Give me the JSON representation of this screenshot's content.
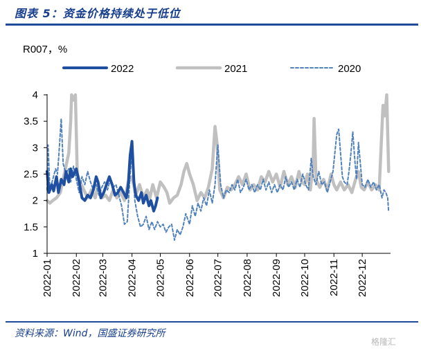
{
  "header": {
    "title": "图表 5：资金价格持续处于低位"
  },
  "footer": {
    "source": "资料来源：Wind，国盛证券研究所",
    "watermark": "格隆汇"
  },
  "chart_data": {
    "type": "line",
    "unit_label": "R007，%",
    "ylim": [
      1,
      4
    ],
    "yticks": [
      1,
      1.5,
      2,
      2.5,
      3,
      3.5,
      4
    ],
    "xlim": [
      "2022-01-01",
      "2022-12-31"
    ],
    "xticks": [
      "2022-01",
      "2022-02",
      "2022-03",
      "2022-04",
      "2022-05",
      "2022-06",
      "2022-07",
      "2022-08",
      "2022-09",
      "2022-10",
      "2022-11",
      "2022-12"
    ],
    "grid": false,
    "legend_position": "top",
    "series": [
      {
        "name": "2022",
        "color": "#1f4fa0",
        "style": "solid-thick",
        "points": [
          [
            "2022-01-01",
            2.55
          ],
          [
            "2022-01-03",
            2.15
          ],
          [
            "2022-01-06",
            2.3
          ],
          [
            "2022-01-08",
            2.18
          ],
          [
            "2022-01-11",
            2.45
          ],
          [
            "2022-01-13",
            2.15
          ],
          [
            "2022-01-16",
            2.4
          ],
          [
            "2022-01-19",
            2.3
          ],
          [
            "2022-01-21",
            2.55
          ],
          [
            "2022-01-24",
            2.35
          ],
          [
            "2022-01-26",
            2.6
          ],
          [
            "2022-01-28",
            2.45
          ],
          [
            "2022-02-01",
            2.6
          ],
          [
            "2022-02-04",
            2.35
          ],
          [
            "2022-02-07",
            2.05
          ],
          [
            "2022-02-10",
            2.0
          ],
          [
            "2022-02-13",
            2.1
          ],
          [
            "2022-02-16",
            2.05
          ],
          [
            "2022-02-19",
            2.2
          ],
          [
            "2022-02-22",
            2.45
          ],
          [
            "2022-02-24",
            2.35
          ],
          [
            "2022-02-27",
            2.05
          ],
          [
            "2022-03-02",
            2.15
          ],
          [
            "2022-03-05",
            2.3
          ],
          [
            "2022-03-08",
            2.45
          ],
          [
            "2022-03-11",
            2.3
          ],
          [
            "2022-03-14",
            2.1
          ],
          [
            "2022-03-17",
            2.15
          ],
          [
            "2022-03-20",
            2.25
          ],
          [
            "2022-03-23",
            2.15
          ],
          [
            "2022-03-26",
            2.05
          ],
          [
            "2022-03-28",
            2.3
          ],
          [
            "2022-03-30",
            2.85
          ],
          [
            "2022-04-01",
            3.12
          ],
          [
            "2022-04-03",
            2.35
          ],
          [
            "2022-04-05",
            2.1
          ],
          [
            "2022-04-08",
            2.0
          ],
          [
            "2022-04-11",
            2.15
          ],
          [
            "2022-04-13",
            1.95
          ],
          [
            "2022-04-16",
            2.1
          ],
          [
            "2022-04-19",
            1.9
          ],
          [
            "2022-04-21",
            2.0
          ],
          [
            "2022-04-24",
            1.8
          ],
          [
            "2022-04-26",
            1.9
          ],
          [
            "2022-04-28",
            2.05
          ]
        ]
      },
      {
        "name": "2021",
        "color": "#c0c0c0",
        "style": "solid-thick",
        "points": [
          [
            "2022-01-01",
            2.0
          ],
          [
            "2022-01-04",
            1.95
          ],
          [
            "2022-01-07",
            2.0
          ],
          [
            "2022-01-11",
            2.05
          ],
          [
            "2022-01-15",
            2.15
          ],
          [
            "2022-01-18",
            2.4
          ],
          [
            "2022-01-21",
            2.65
          ],
          [
            "2022-01-24",
            2.9
          ],
          [
            "2022-01-26",
            3.5
          ],
          [
            "2022-01-27",
            4.0
          ],
          [
            "2022-01-29",
            3.9
          ],
          [
            "2022-01-31",
            4.0
          ],
          [
            "2022-02-02",
            2.5
          ],
          [
            "2022-02-05",
            2.35
          ],
          [
            "2022-02-09",
            2.2
          ],
          [
            "2022-02-13",
            2.05
          ],
          [
            "2022-02-17",
            2.2
          ],
          [
            "2022-02-21",
            2.05
          ],
          [
            "2022-02-24",
            2.3
          ],
          [
            "2022-02-28",
            2.05
          ],
          [
            "2022-03-04",
            2.1
          ],
          [
            "2022-03-08",
            2.0
          ],
          [
            "2022-03-12",
            2.2
          ],
          [
            "2022-03-16",
            2.05
          ],
          [
            "2022-03-20",
            2.15
          ],
          [
            "2022-03-24",
            2.0
          ],
          [
            "2022-03-28",
            2.35
          ],
          [
            "2022-04-01",
            2.45
          ],
          [
            "2022-04-05",
            2.1
          ],
          [
            "2022-04-09",
            2.3
          ],
          [
            "2022-04-13",
            2.05
          ],
          [
            "2022-04-17",
            2.2
          ],
          [
            "2022-04-20",
            2.05
          ],
          [
            "2022-04-23",
            2.3
          ],
          [
            "2022-04-27",
            2.05
          ],
          [
            "2022-05-01",
            2.35
          ],
          [
            "2022-05-05",
            2.25
          ],
          [
            "2022-05-08",
            2.15
          ],
          [
            "2022-05-11",
            1.95
          ],
          [
            "2022-05-15",
            2.05
          ],
          [
            "2022-05-19",
            2.1
          ],
          [
            "2022-05-23",
            2.3
          ],
          [
            "2022-05-26",
            2.55
          ],
          [
            "2022-05-29",
            2.7
          ],
          [
            "2022-06-01",
            2.5
          ],
          [
            "2022-06-05",
            2.3
          ],
          [
            "2022-06-09",
            2.0
          ],
          [
            "2022-06-13",
            2.15
          ],
          [
            "2022-06-17",
            2.05
          ],
          [
            "2022-06-21",
            2.25
          ],
          [
            "2022-06-25",
            2.6
          ],
          [
            "2022-06-28",
            3.4
          ],
          [
            "2022-06-30",
            3.1
          ],
          [
            "2022-07-03",
            2.2
          ],
          [
            "2022-07-07",
            2.05
          ],
          [
            "2022-07-11",
            2.25
          ],
          [
            "2022-07-15",
            2.2
          ],
          [
            "2022-07-19",
            2.3
          ],
          [
            "2022-07-23",
            2.45
          ],
          [
            "2022-07-27",
            2.3
          ],
          [
            "2022-07-31",
            2.5
          ],
          [
            "2022-08-04",
            2.2
          ],
          [
            "2022-08-08",
            2.3
          ],
          [
            "2022-08-12",
            2.2
          ],
          [
            "2022-08-16",
            2.45
          ],
          [
            "2022-08-20",
            2.35
          ],
          [
            "2022-08-24",
            2.55
          ],
          [
            "2022-08-28",
            2.35
          ],
          [
            "2022-09-01",
            2.5
          ],
          [
            "2022-09-05",
            2.25
          ],
          [
            "2022-09-09",
            2.55
          ],
          [
            "2022-09-13",
            2.3
          ],
          [
            "2022-09-17",
            2.45
          ],
          [
            "2022-09-21",
            2.25
          ],
          [
            "2022-09-25",
            2.55
          ],
          [
            "2022-09-28",
            2.35
          ],
          [
            "2022-10-01",
            2.3
          ],
          [
            "2022-10-04",
            2.5
          ],
          [
            "2022-10-07",
            2.2
          ],
          [
            "2022-10-10",
            2.7
          ],
          [
            "2022-10-11",
            3.55
          ],
          [
            "2022-10-13",
            2.4
          ],
          [
            "2022-10-17",
            2.25
          ],
          [
            "2022-10-21",
            2.4
          ],
          [
            "2022-10-25",
            2.2
          ],
          [
            "2022-10-29",
            2.5
          ],
          [
            "2022-11-01",
            2.3
          ],
          [
            "2022-11-04",
            2.2
          ],
          [
            "2022-11-08",
            2.35
          ],
          [
            "2022-11-12",
            2.2
          ],
          [
            "2022-11-16",
            2.3
          ],
          [
            "2022-11-20",
            2.15
          ],
          [
            "2022-11-24",
            2.4
          ],
          [
            "2022-11-27",
            2.55
          ],
          [
            "2022-11-30",
            2.25
          ],
          [
            "2022-12-03",
            2.2
          ],
          [
            "2022-12-07",
            2.35
          ],
          [
            "2022-12-11",
            2.2
          ],
          [
            "2022-12-15",
            2.3
          ],
          [
            "2022-12-19",
            2.2
          ],
          [
            "2022-12-23",
            3.8
          ],
          [
            "2022-12-25",
            3.6
          ],
          [
            "2022-12-27",
            4.0
          ],
          [
            "2022-12-29",
            2.55
          ]
        ]
      },
      {
        "name": "2020",
        "color": "#4f81bd",
        "style": "dashed",
        "points": [
          [
            "2022-01-01",
            2.2
          ],
          [
            "2022-01-02",
            3.05
          ],
          [
            "2022-01-04",
            2.2
          ],
          [
            "2022-01-07",
            2.4
          ],
          [
            "2022-01-10",
            2.6
          ],
          [
            "2022-01-12",
            2.5
          ],
          [
            "2022-01-14",
            3.0
          ],
          [
            "2022-01-16",
            3.55
          ],
          [
            "2022-01-18",
            2.7
          ],
          [
            "2022-01-21",
            2.5
          ],
          [
            "2022-01-24",
            2.6
          ],
          [
            "2022-01-26",
            2.35
          ],
          [
            "2022-01-29",
            2.65
          ],
          [
            "2022-02-01",
            2.4
          ],
          [
            "2022-02-04",
            2.15
          ],
          [
            "2022-02-07",
            2.45
          ],
          [
            "2022-02-10",
            2.3
          ],
          [
            "2022-02-13",
            2.55
          ],
          [
            "2022-02-16",
            2.35
          ],
          [
            "2022-02-19",
            2.2
          ],
          [
            "2022-02-22",
            2.3
          ],
          [
            "2022-02-25",
            2.1
          ],
          [
            "2022-02-28",
            2.25
          ],
          [
            "2022-03-03",
            2.35
          ],
          [
            "2022-03-06",
            2.2
          ],
          [
            "2022-03-09",
            2.4
          ],
          [
            "2022-03-12",
            2.25
          ],
          [
            "2022-03-15",
            2.3
          ],
          [
            "2022-03-18",
            2.1
          ],
          [
            "2022-03-21",
            1.9
          ],
          [
            "2022-03-24",
            1.55
          ],
          [
            "2022-03-27",
            1.6
          ],
          [
            "2022-03-30",
            2.5
          ],
          [
            "2022-04-01",
            2.9
          ],
          [
            "2022-04-04",
            2.0
          ],
          [
            "2022-04-07",
            1.7
          ],
          [
            "2022-04-10",
            1.5
          ],
          [
            "2022-04-13",
            1.55
          ],
          [
            "2022-04-16",
            1.7
          ],
          [
            "2022-04-19",
            1.45
          ],
          [
            "2022-04-22",
            1.6
          ],
          [
            "2022-04-25",
            1.45
          ],
          [
            "2022-04-28",
            1.6
          ],
          [
            "2022-05-01",
            1.5
          ],
          [
            "2022-05-04",
            1.55
          ],
          [
            "2022-05-07",
            1.4
          ],
          [
            "2022-05-10",
            1.5
          ],
          [
            "2022-05-13",
            1.55
          ],
          [
            "2022-05-16",
            1.25
          ],
          [
            "2022-05-19",
            1.45
          ],
          [
            "2022-05-22",
            1.35
          ],
          [
            "2022-05-25",
            1.5
          ],
          [
            "2022-05-28",
            1.75
          ],
          [
            "2022-06-01",
            1.55
          ],
          [
            "2022-06-04",
            1.9
          ],
          [
            "2022-06-07",
            1.7
          ],
          [
            "2022-06-10",
            1.95
          ],
          [
            "2022-06-13",
            1.8
          ],
          [
            "2022-06-16",
            2.05
          ],
          [
            "2022-06-19",
            1.9
          ],
          [
            "2022-06-22",
            2.2
          ],
          [
            "2022-06-25",
            1.95
          ],
          [
            "2022-06-28",
            2.3
          ],
          [
            "2022-07-01",
            3.05
          ],
          [
            "2022-07-04",
            2.3
          ],
          [
            "2022-07-07",
            2.05
          ],
          [
            "2022-07-10",
            2.2
          ],
          [
            "2022-07-13",
            2.15
          ],
          [
            "2022-07-16",
            2.3
          ],
          [
            "2022-07-19",
            2.2
          ],
          [
            "2022-07-22",
            2.4
          ],
          [
            "2022-07-25",
            2.15
          ],
          [
            "2022-07-28",
            2.25
          ],
          [
            "2022-07-31",
            2.4
          ],
          [
            "2022-08-03",
            2.2
          ],
          [
            "2022-08-06",
            2.3
          ],
          [
            "2022-08-09",
            2.15
          ],
          [
            "2022-08-12",
            2.3
          ],
          [
            "2022-08-15",
            2.2
          ],
          [
            "2022-08-18",
            2.4
          ],
          [
            "2022-08-21",
            2.2
          ],
          [
            "2022-08-24",
            2.35
          ],
          [
            "2022-08-27",
            2.15
          ],
          [
            "2022-08-30",
            2.3
          ],
          [
            "2022-09-02",
            2.15
          ],
          [
            "2022-09-05",
            2.3
          ],
          [
            "2022-09-08",
            2.2
          ],
          [
            "2022-09-11",
            2.45
          ],
          [
            "2022-09-14",
            2.25
          ],
          [
            "2022-09-17",
            2.35
          ],
          [
            "2022-09-20",
            2.2
          ],
          [
            "2022-09-23",
            2.4
          ],
          [
            "2022-09-26",
            2.25
          ],
          [
            "2022-09-29",
            2.5
          ],
          [
            "2022-10-02",
            2.3
          ],
          [
            "2022-10-05",
            2.2
          ],
          [
            "2022-10-08",
            2.8
          ],
          [
            "2022-10-10",
            2.45
          ],
          [
            "2022-10-13",
            2.3
          ],
          [
            "2022-10-16",
            2.55
          ],
          [
            "2022-10-19",
            2.3
          ],
          [
            "2022-10-22",
            2.35
          ],
          [
            "2022-10-25",
            2.15
          ],
          [
            "2022-10-28",
            2.35
          ],
          [
            "2022-10-31",
            2.55
          ],
          [
            "2022-11-02",
            2.9
          ],
          [
            "2022-11-04",
            3.25
          ],
          [
            "2022-11-06",
            3.35
          ],
          [
            "2022-11-08",
            2.9
          ],
          [
            "2022-11-10",
            2.45
          ],
          [
            "2022-11-12",
            2.35
          ],
          [
            "2022-11-15",
            2.3
          ],
          [
            "2022-11-17",
            2.55
          ],
          [
            "2022-11-19",
            2.9
          ],
          [
            "2022-11-21",
            3.3
          ],
          [
            "2022-11-23",
            2.8
          ],
          [
            "2022-11-25",
            2.4
          ],
          [
            "2022-11-27",
            3.1
          ],
          [
            "2022-11-29",
            2.7
          ],
          [
            "2022-12-01",
            2.3
          ],
          [
            "2022-12-04",
            2.25
          ],
          [
            "2022-12-07",
            2.4
          ],
          [
            "2022-12-10",
            2.25
          ],
          [
            "2022-12-13",
            2.35
          ],
          [
            "2022-12-16",
            2.2
          ],
          [
            "2022-12-19",
            2.3
          ],
          [
            "2022-12-22",
            2.05
          ],
          [
            "2022-12-24",
            2.2
          ],
          [
            "2022-12-26",
            2.15
          ],
          [
            "2022-12-28",
            2.05
          ],
          [
            "2022-12-29",
            1.78
          ]
        ]
      }
    ]
  }
}
